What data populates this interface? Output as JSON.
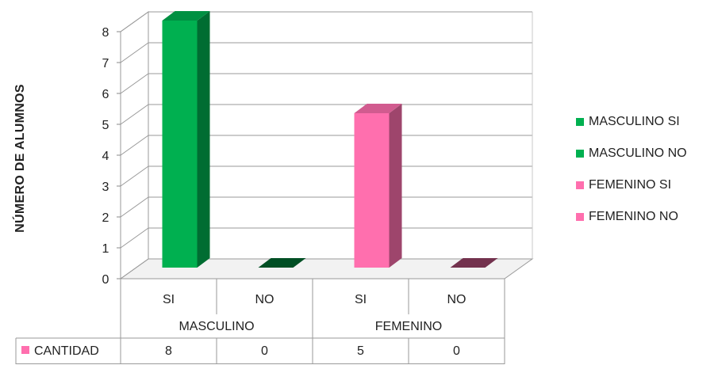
{
  "chart_data": {
    "type": "bar",
    "ylabel": "NÚMERO DE ALUMNOS",
    "ylim": [
      0,
      8
    ],
    "yticks": [
      "0",
      "1",
      "2",
      "3",
      "4",
      "5",
      "6",
      "7",
      "8"
    ],
    "groups": [
      {
        "label": "MASCULINO",
        "categories": [
          "SI",
          "NO"
        ]
      },
      {
        "label": "FEMENINO",
        "categories": [
          "SI",
          "NO"
        ]
      }
    ],
    "series": [
      {
        "name": "MASCULINO SI",
        "value": 8,
        "color": "#00b050"
      },
      {
        "name": "MASCULINO NO",
        "value": 0,
        "color": "#00b050"
      },
      {
        "name": "FEMENINO SI",
        "value": 5,
        "color": "#ff6fae"
      },
      {
        "name": "FEMENINO NO",
        "value": 0,
        "color": "#ff6fae"
      }
    ],
    "table": {
      "row_label": "CANTIDAD",
      "row_color": "#ff6fae",
      "values": [
        "8",
        "0",
        "5",
        "0"
      ]
    },
    "grid": true,
    "legend": "right"
  }
}
